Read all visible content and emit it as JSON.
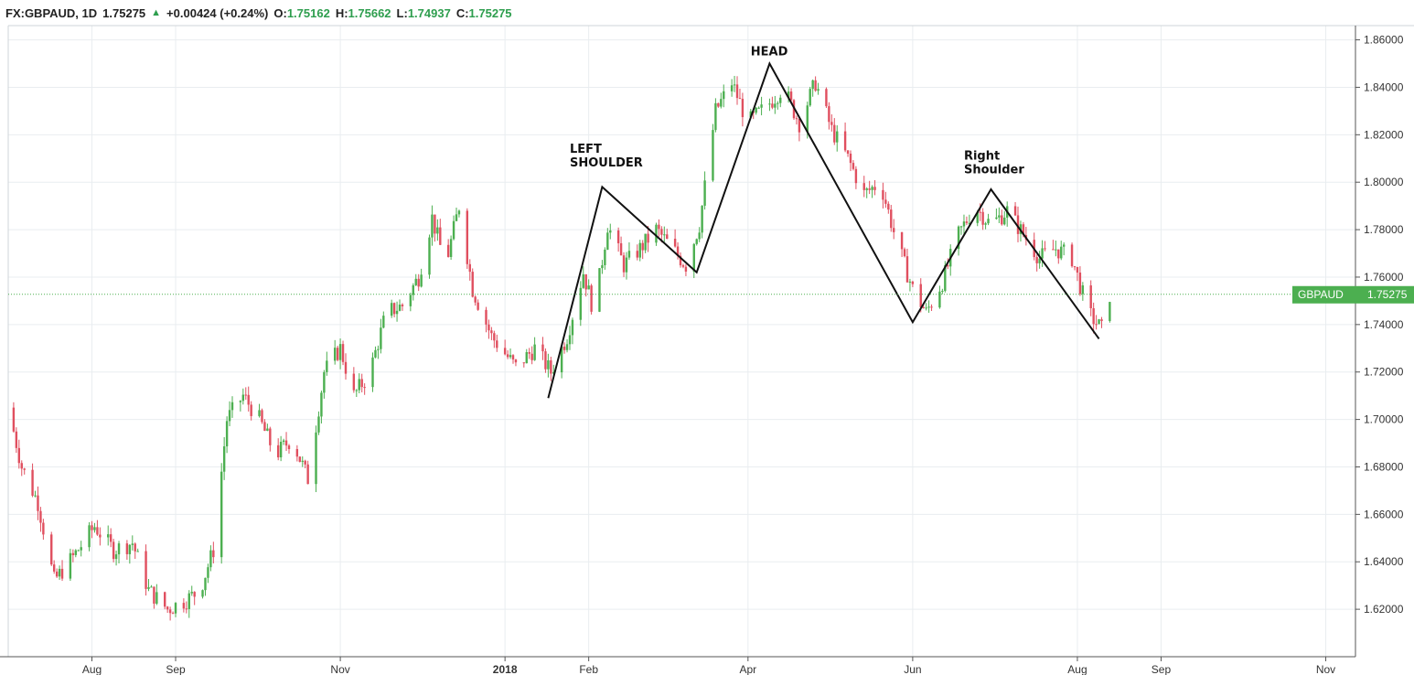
{
  "header": {
    "symbol": "FX:GBPAUD, 1D",
    "last": "1.75275",
    "change": "+0.00424 (+0.24%)",
    "o_label": "O:",
    "o_value": "1.75162",
    "h_label": "H:",
    "h_value": "1.75662",
    "l_label": "L:",
    "l_value": "1.74937",
    "c_label": "C:",
    "c_value": "1.75275"
  },
  "colors": {
    "up": "#4caf50",
    "down": "#e04f5f",
    "price_line": "#4caf50",
    "grid": "#e9edf0",
    "axis": "#555555"
  },
  "chart_data": {
    "type": "candlestick",
    "title": "",
    "xlabel": "",
    "ylabel": "",
    "ylim": [
      1.6,
      1.866
    ],
    "x_range": [
      "2017-07-01",
      "2018-11-12"
    ],
    "y_ticks": [
      "1.86000",
      "1.84000",
      "1.82000",
      "1.80000",
      "1.78000",
      "1.76000",
      "1.74000",
      "1.72000",
      "1.70000",
      "1.68000",
      "1.66000",
      "1.64000",
      "1.62000"
    ],
    "x_ticks": [
      {
        "label": "Aug",
        "date": "2017-08-01"
      },
      {
        "label": "Sep",
        "date": "2017-09-01"
      },
      {
        "label": "Nov",
        "date": "2017-11-01"
      },
      {
        "label": "2018",
        "date": "2018-01-01"
      },
      {
        "label": "Feb",
        "date": "2018-02-01"
      },
      {
        "label": "Apr",
        "date": "2018-04-01"
      },
      {
        "label": "Jun",
        "date": "2018-06-01"
      },
      {
        "label": "Aug",
        "date": "2018-08-01"
      },
      {
        "label": "Sep",
        "date": "2018-09-01"
      },
      {
        "label": "Nov",
        "date": "2018-11-01"
      }
    ],
    "grid": true,
    "last_price": 1.75275,
    "price_tag": {
      "symbol": "GBPAUD",
      "value": "1.75275"
    },
    "close_path": [
      [
        "2017-07-01",
        1.705
      ],
      [
        "2017-07-06",
        1.68
      ],
      [
        "2017-07-12",
        1.665
      ],
      [
        "2017-07-18",
        1.632
      ],
      [
        "2017-07-25",
        1.642
      ],
      [
        "2017-08-02",
        1.655
      ],
      [
        "2017-08-09",
        1.645
      ],
      [
        "2017-08-16",
        1.648
      ],
      [
        "2017-08-22",
        1.628
      ],
      [
        "2017-08-29",
        1.62
      ],
      [
        "2017-09-05",
        1.624
      ],
      [
        "2017-09-10",
        1.628
      ],
      [
        "2017-09-15",
        1.645
      ],
      [
        "2017-09-20",
        1.7
      ],
      [
        "2017-09-26",
        1.71
      ],
      [
        "2017-10-02",
        1.7
      ],
      [
        "2017-10-08",
        1.685
      ],
      [
        "2017-10-14",
        1.692
      ],
      [
        "2017-10-20",
        1.675
      ],
      [
        "2017-10-26",
        1.72
      ],
      [
        "2017-11-01",
        1.73
      ],
      [
        "2017-11-06",
        1.71
      ],
      [
        "2017-11-12",
        1.72
      ],
      [
        "2017-11-18",
        1.745
      ],
      [
        "2017-11-24",
        1.748
      ],
      [
        "2017-11-30",
        1.76
      ],
      [
        "2017-12-05",
        1.785
      ],
      [
        "2017-12-10",
        1.765
      ],
      [
        "2017-12-15",
        1.79
      ],
      [
        "2017-12-20",
        1.755
      ],
      [
        "2017-12-27",
        1.735
      ],
      [
        "2018-01-05",
        1.722
      ],
      [
        "2018-01-12",
        1.73
      ],
      [
        "2018-01-18",
        1.72
      ],
      [
        "2018-01-24",
        1.735
      ],
      [
        "2018-01-30",
        1.762
      ],
      [
        "2018-02-03",
        1.745
      ],
      [
        "2018-02-08",
        1.782
      ],
      [
        "2018-02-14",
        1.765
      ],
      [
        "2018-02-20",
        1.772
      ],
      [
        "2018-02-26",
        1.78
      ],
      [
        "2018-03-04",
        1.772
      ],
      [
        "2018-03-09",
        1.765
      ],
      [
        "2018-03-14",
        1.782
      ],
      [
        "2018-03-20",
        1.83
      ],
      [
        "2018-03-26",
        1.842
      ],
      [
        "2018-04-01",
        1.825
      ],
      [
        "2018-04-08",
        1.832
      ],
      [
        "2018-04-14",
        1.84
      ],
      [
        "2018-04-20",
        1.825
      ],
      [
        "2018-04-26",
        1.842
      ],
      [
        "2018-05-02",
        1.822
      ],
      [
        "2018-05-08",
        1.81
      ],
      [
        "2018-05-14",
        1.795
      ],
      [
        "2018-05-20",
        1.8
      ],
      [
        "2018-05-26",
        1.775
      ],
      [
        "2018-06-01",
        1.755
      ],
      [
        "2018-06-06",
        1.745
      ],
      [
        "2018-06-12",
        1.758
      ],
      [
        "2018-06-18",
        1.778
      ],
      [
        "2018-06-24",
        1.79
      ],
      [
        "2018-06-30",
        1.782
      ],
      [
        "2018-07-06",
        1.788
      ],
      [
        "2018-07-12",
        1.778
      ],
      [
        "2018-07-18",
        1.768
      ],
      [
        "2018-07-24",
        1.772
      ],
      [
        "2018-07-30",
        1.768
      ],
      [
        "2018-08-05",
        1.745
      ],
      [
        "2018-08-10",
        1.738
      ],
      [
        "2018-08-13",
        1.7527
      ]
    ],
    "annotation_lines": [
      [
        "2018-01-17",
        1.709
      ],
      [
        "2018-02-06",
        1.798
      ],
      [
        "2018-03-13",
        1.762
      ],
      [
        "2018-04-09",
        1.85
      ],
      [
        "2018-06-01",
        1.741
      ],
      [
        "2018-06-30",
        1.797
      ],
      [
        "2018-08-09",
        1.734
      ]
    ],
    "annotations": [
      {
        "lines": [
          "LEFT",
          "SHOULDER"
        ],
        "date": "2018-01-25",
        "price": 1.8125
      },
      {
        "lines": [
          "HEAD"
        ],
        "date": "2018-04-02",
        "price": 1.8535
      },
      {
        "lines": [
          "Right",
          "Shoulder"
        ],
        "date": "2018-06-20",
        "price": 1.8095
      }
    ]
  }
}
